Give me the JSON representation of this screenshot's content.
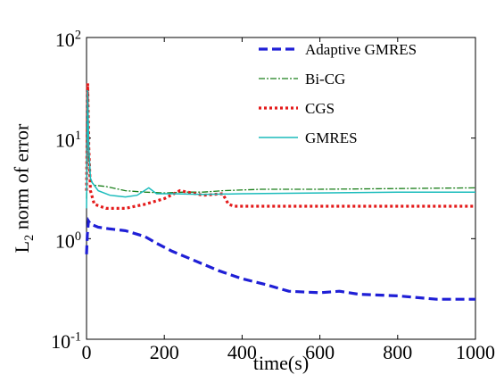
{
  "chart_data": {
    "type": "line",
    "log_y": true,
    "legend": "upper right",
    "x_label": "time(s)",
    "y_label": "L_2 norm of error",
    "xlim": [
      0,
      1000
    ],
    "xticks": [
      0,
      200,
      400,
      600,
      800,
      1000
    ],
    "ylim": [
      0.1,
      100
    ],
    "yticks": [
      {
        "value": 0.1,
        "label": "10^-1"
      },
      {
        "value": 1,
        "label": "10^0"
      },
      {
        "value": 10,
        "label": "10^1"
      },
      {
        "value": 100,
        "label": "10^2"
      }
    ],
    "series": [
      {
        "name": "Adaptive GMRES",
        "color": "#1f1fd6",
        "dash": "10,5",
        "width": 3.2,
        "x": [
          0,
          2,
          5,
          10,
          30,
          60,
          100,
          150,
          180,
          220,
          280,
          340,
          400,
          460,
          520,
          600,
          650,
          700,
          800,
          900,
          1000
        ],
        "values": [
          0.7,
          1.1,
          1.5,
          1.4,
          1.3,
          1.25,
          1.2,
          1.05,
          0.9,
          0.75,
          0.6,
          0.48,
          0.4,
          0.35,
          0.3,
          0.29,
          0.3,
          0.28,
          0.27,
          0.25,
          0.25
        ]
      },
      {
        "name": "Bi-CG",
        "color": "#1a7f1a",
        "dash": "7,2,2,2",
        "width": 1.3,
        "x": [
          0,
          3,
          6,
          10,
          20,
          50,
          100,
          150,
          200,
          250,
          300,
          350,
          450,
          600,
          800,
          1000
        ],
        "values": [
          2.5,
          30,
          6,
          3.8,
          3.4,
          3.3,
          3.0,
          2.9,
          2.85,
          2.9,
          2.9,
          3.0,
          3.1,
          3.1,
          3.15,
          3.2
        ]
      },
      {
        "name": "CGS",
        "color": "#e41a1a",
        "dash": "3,3",
        "width": 3.2,
        "x": [
          0,
          3,
          6,
          10,
          20,
          50,
          100,
          150,
          200,
          240,
          260,
          300,
          350,
          365,
          380,
          500,
          700,
          1000
        ],
        "values": [
          3,
          35,
          8,
          3,
          2.2,
          2.0,
          2.0,
          2.2,
          2.5,
          3.0,
          2.9,
          2.7,
          2.8,
          2.2,
          2.1,
          2.1,
          2.1,
          2.1
        ]
      },
      {
        "name": "GMRES",
        "color": "#1bbcbc",
        "dash": "",
        "width": 1.5,
        "x": [
          0,
          3,
          6,
          10,
          15,
          30,
          60,
          100,
          130,
          160,
          180,
          220,
          300,
          400,
          600,
          800,
          1000
        ],
        "values": [
          2,
          30,
          8,
          4,
          3.6,
          3.0,
          2.7,
          2.6,
          2.7,
          3.2,
          2.8,
          2.8,
          2.75,
          2.8,
          2.85,
          2.9,
          2.9
        ]
      }
    ]
  }
}
